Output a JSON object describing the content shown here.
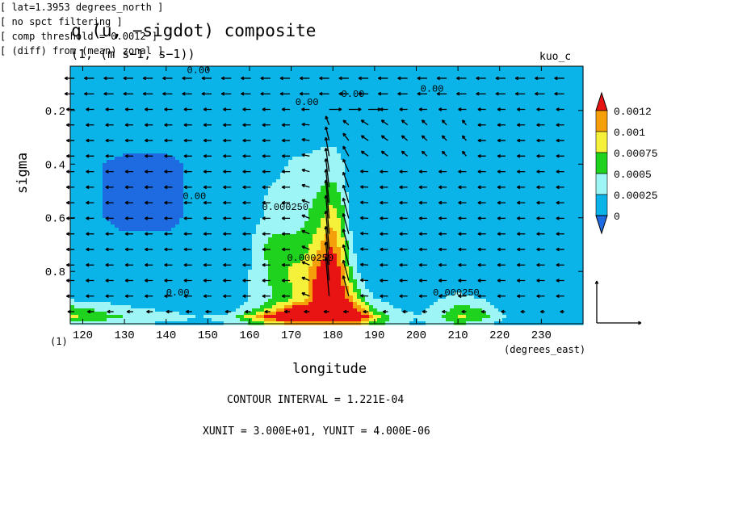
{
  "header": {
    "title": "q (u, −sigdot) composite",
    "subtitle": "(1, (m s−1, s−1))",
    "run_name": "kuo_c"
  },
  "footer": {
    "contour_interval": "CONTOUR INTERVAL = 1.221E-04",
    "vector_units": "XUNIT = 3.000E+01, YUNIT = 4.000E-06",
    "notes": [
      "[ lat=1.3953 degrees_north ]",
      "[ no spct filtering ]",
      "[ comp threshold = 0.0012 ]",
      "[ (diff) from (mean) zonal ]"
    ]
  },
  "chart_data": {
    "type": "heatmap",
    "title": "q (u, −sigdot) composite",
    "subtitle": "(1, (m s−1, s−1))",
    "xlabel": "longitude",
    "xunits": "(degrees_east)",
    "ylabel": "sigma",
    "yunits": "(1)",
    "xlim": [
      117,
      240
    ],
    "ylim": [
      0.035,
      0.995
    ],
    "y_inverted": true,
    "x_ticks": [
      120,
      130,
      140,
      150,
      160,
      170,
      180,
      190,
      200,
      210,
      220,
      230
    ],
    "x_tick_labels": [
      "120",
      "130",
      "140",
      "150",
      "160",
      "170",
      "180",
      "190",
      "200",
      "210",
      "220",
      "230"
    ],
    "y_ticks": [
      0.2,
      0.4,
      0.6,
      0.8
    ],
    "y_tick_labels": [
      "0.2",
      "0.4",
      "0.6",
      "0.8"
    ],
    "colorbar": {
      "levels": [
        0,
        0.00025,
        0.0005,
        0.00075,
        0.001,
        0.0012
      ],
      "labels": [
        "0.0012",
        "0.001",
        "0.00075",
        "0.0005",
        "0.00025",
        "0"
      ],
      "colors": [
        "#1e6ae0",
        "#0ab4e8",
        "#9df5f5",
        "#1ed21e",
        "#f5f03a",
        "#f5a00a",
        "#e81414"
      ],
      "extend": "both"
    },
    "contour_labels": [
      {
        "text": "0.00",
        "lon": 145,
        "sigma": 0.06
      },
      {
        "text": "0.00",
        "lon": 201,
        "sigma": 0.13
      },
      {
        "text": "0.00",
        "lon": 182,
        "sigma": 0.15
      },
      {
        "text": "0.00",
        "lon": 171,
        "sigma": 0.18
      },
      {
        "text": "0.00",
        "lon": 144,
        "sigma": 0.53
      },
      {
        "text": "0.000250",
        "lon": 163,
        "sigma": 0.57
      },
      {
        "text": "0.000250",
        "lon": 169,
        "sigma": 0.76
      },
      {
        "text": "0.00",
        "lon": 140,
        "sigma": 0.89
      },
      {
        "text": "0.000250",
        "lon": 204,
        "sigma": 0.89
      }
    ],
    "field": {
      "lon": [
        117,
        130,
        140,
        148,
        155,
        160,
        165,
        170,
        173,
        176,
        178,
        180,
        182,
        184,
        186,
        188,
        190,
        195,
        200,
        205,
        210,
        215,
        220,
        225,
        230,
        240
      ],
      "sigma": [
        0.035,
        0.12,
        0.2,
        0.3,
        0.4,
        0.5,
        0.6,
        0.7,
        0.8,
        0.86,
        0.9,
        0.94,
        0.97,
        0.995
      ],
      "values": [
        [
          0.0001,
          0.0001,
          0.0001,
          0.0001,
          0.0001,
          0.0001,
          0.0001,
          0.0001,
          0.0001,
          0.0001,
          0.0001,
          0.0001,
          0.0001,
          0.0001,
          0.0001,
          0.0001,
          0.0001,
          0.0001,
          0.0001,
          0.0001,
          0.0001,
          0.0001,
          0.0001,
          0.0001,
          0.0001,
          0.0001
        ],
        [
          0.00012,
          0.00012,
          0.00012,
          0.00012,
          0.00012,
          0.00012,
          0.00012,
          0.00012,
          0.00012,
          0.00012,
          0.00012,
          0.00012,
          0.00012,
          0.00012,
          0.00012,
          0.00012,
          0.00012,
          0.00012,
          0.00012,
          0.00012,
          0.00012,
          0.00012,
          0.00012,
          0.00012,
          0.00012,
          0.00012
        ],
        [
          0.0001,
          0.0001,
          0.0001,
          0.0001,
          0.0001,
          0.0001,
          0.0001,
          0.0001,
          0.0001,
          0.0001,
          0.00012,
          0.00012,
          0.0001,
          0.0001,
          0.0001,
          0.0001,
          0.0001,
          0.0001,
          0.0001,
          0.0001,
          0.0001,
          0.0001,
          0.0001,
          0.0001,
          0.0001,
          0.0001
        ],
        [
          8e-05,
          8e-05,
          8e-05,
          8e-05,
          8e-05,
          8e-05,
          8e-05,
          0.00012,
          0.00012,
          0.00015,
          0.0002,
          0.0002,
          0.00015,
          0.0001,
          8e-05,
          8e-05,
          8e-05,
          8e-05,
          8e-05,
          8e-05,
          8e-05,
          8e-05,
          8e-05,
          8e-05,
          8e-05,
          8e-05
        ],
        [
          8e-05,
          -5e-05,
          -5e-05,
          5e-05,
          8e-05,
          8e-05,
          0.00012,
          0.00028,
          0.00032,
          0.00035,
          0.00035,
          0.00035,
          0.0003,
          0.00012,
          8e-05,
          8e-05,
          8e-05,
          8e-05,
          8e-05,
          8e-05,
          8e-05,
          8e-05,
          8e-05,
          8e-05,
          8e-05,
          8e-05
        ],
        [
          8e-05,
          -5e-05,
          -5e-05,
          5e-05,
          8e-05,
          0.00012,
          0.00028,
          0.00035,
          0.0004,
          0.00048,
          0.00055,
          0.0006,
          0.00045,
          0.00015,
          8e-05,
          8e-05,
          8e-05,
          8e-05,
          8e-05,
          8e-05,
          8e-05,
          8e-05,
          8e-05,
          8e-05,
          8e-05,
          8e-05
        ],
        [
          8e-05,
          -5e-05,
          -5e-05,
          5e-05,
          8e-05,
          0.00015,
          0.0003,
          0.0004,
          0.00045,
          0.0006,
          0.0008,
          0.0009,
          0.0007,
          0.0002,
          8e-05,
          8e-05,
          8e-05,
          8e-05,
          8e-05,
          8e-05,
          8e-05,
          8e-05,
          8e-05,
          8e-05,
          8e-05,
          8e-05
        ],
        [
          8e-05,
          5e-05,
          5e-05,
          8e-05,
          0.0001,
          0.0002,
          0.0006,
          0.00055,
          0.0006,
          0.0009,
          0.0011,
          0.0012,
          0.0009,
          0.00035,
          0.0001,
          8e-05,
          8e-05,
          8e-05,
          8e-05,
          8e-05,
          8e-05,
          8e-05,
          8e-05,
          8e-05,
          8e-05,
          8e-05
        ],
        [
          8e-05,
          8e-05,
          8e-05,
          0.0001,
          0.00015,
          0.00025,
          0.00055,
          0.0008,
          0.00085,
          0.0012,
          0.00135,
          0.0014,
          0.0012,
          0.0006,
          0.00025,
          0.00012,
          0.0001,
          8e-05,
          8e-05,
          8e-05,
          8e-05,
          8e-05,
          8e-05,
          8e-05,
          8e-05,
          8e-05
        ],
        [
          0.00012,
          0.0001,
          0.0001,
          0.0001,
          0.00015,
          0.00025,
          0.0005,
          0.00075,
          0.0009,
          0.0013,
          0.0014,
          0.0015,
          0.0013,
          0.0009,
          0.0005,
          0.00025,
          0.00015,
          0.0001,
          0.0001,
          0.00012,
          0.00015,
          0.00012,
          0.0001,
          0.0001,
          0.0001,
          0.0001
        ],
        [
          0.00018,
          0.00012,
          0.00012,
          0.00012,
          0.00015,
          0.00025,
          0.00045,
          0.0007,
          0.0009,
          0.0013,
          0.0014,
          0.0015,
          0.0014,
          0.0011,
          0.0008,
          0.0004,
          0.00022,
          0.00015,
          0.00015,
          0.00022,
          0.00035,
          0.00025,
          0.00012,
          0.0001,
          0.0001,
          0.0001
        ],
        [
          0.0006,
          0.0003,
          0.0002,
          0.00015,
          0.00015,
          0.00035,
          0.0008,
          0.0013,
          0.0014,
          0.0014,
          0.0015,
          0.0015,
          0.0015,
          0.0014,
          0.0012,
          0.0009,
          0.0005,
          0.00025,
          0.0002,
          0.0003,
          0.0006,
          0.0005,
          0.00022,
          0.00012,
          0.0001,
          0.0001
        ],
        [
          0.0008,
          0.0005,
          0.00035,
          0.00025,
          0.0003,
          0.0009,
          0.0014,
          0.0015,
          0.0015,
          0.0015,
          0.0015,
          0.0015,
          0.0015,
          0.0015,
          0.0014,
          0.0013,
          0.0009,
          0.0004,
          0.00025,
          0.0004,
          0.0008,
          0.0007,
          0.0003,
          0.00015,
          0.00012,
          0.0001
        ],
        [
          0.0004,
          0.0003,
          0.0002,
          0.0002,
          0.00025,
          0.0005,
          0.0008,
          0.001,
          0.0011,
          0.0011,
          0.0011,
          0.0011,
          0.0011,
          0.0011,
          0.001,
          0.0008,
          0.0006,
          0.0003,
          0.0002,
          0.0003,
          0.0005,
          0.0004,
          0.0002,
          0.00012,
          0.0001,
          0.0001
        ]
      ]
    },
    "vector_reference": {
      "x": 30,
      "y": 4e-06
    }
  }
}
